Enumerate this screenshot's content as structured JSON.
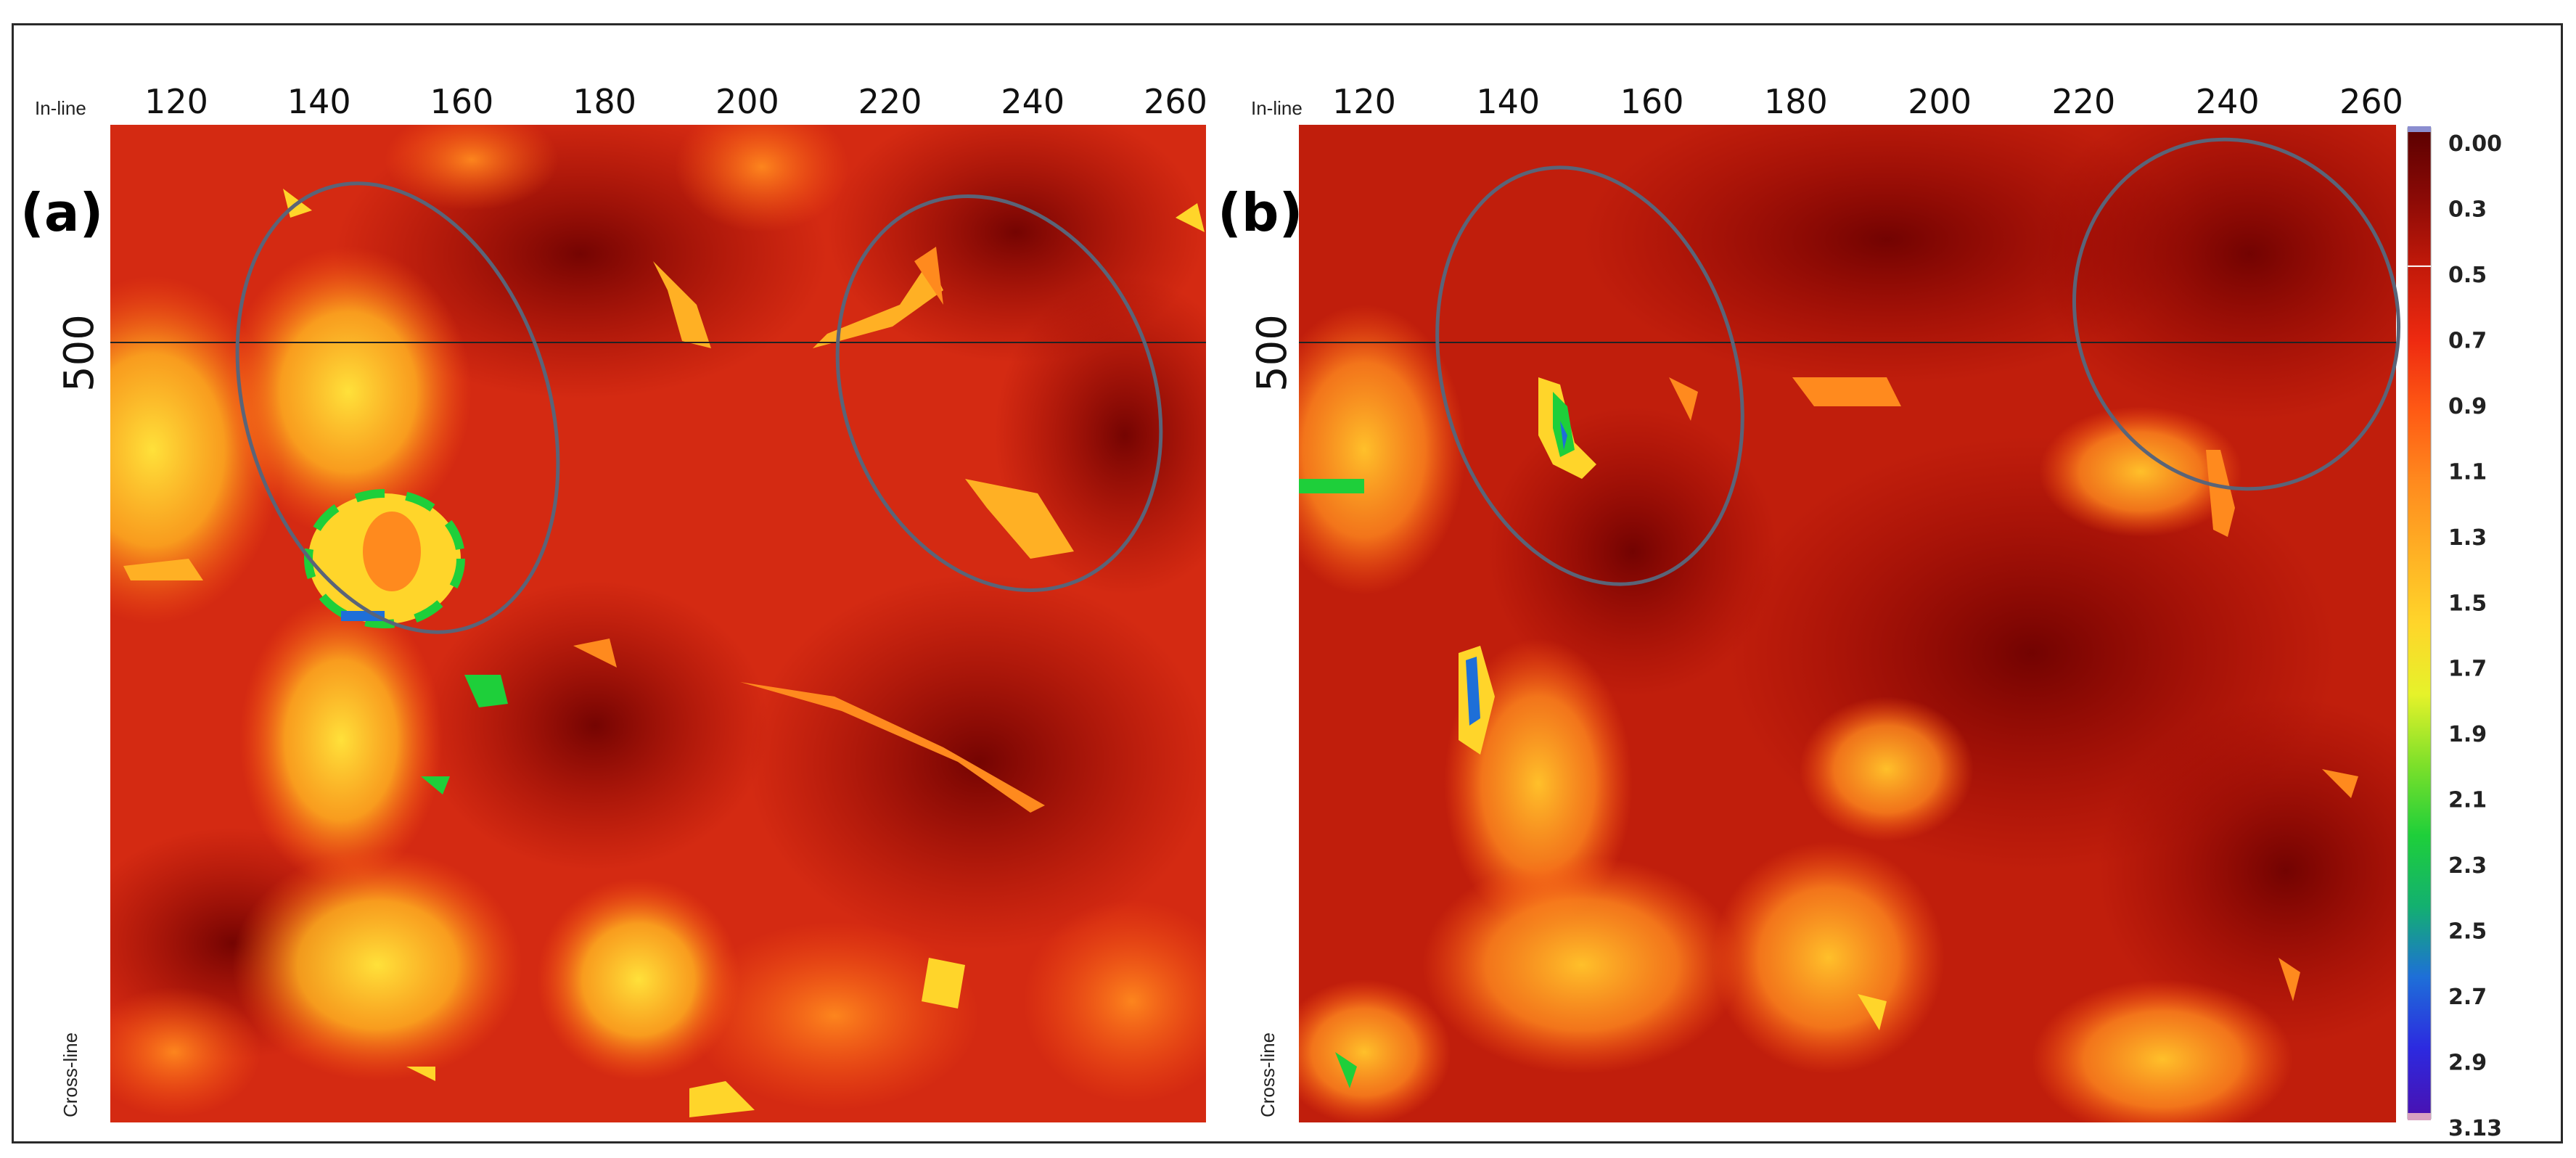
{
  "panels": [
    {
      "id": "a",
      "letter": "(a)",
      "top_axis_label": "In-line",
      "side_axis_label": "Cross-line",
      "xticks": [
        "120",
        "140",
        "160",
        "180",
        "200",
        "220",
        "240",
        "260"
      ],
      "xtick_values": [
        120,
        140,
        160,
        180,
        200,
        220,
        240,
        260
      ],
      "y_marker": "500",
      "ellipses": [
        "left-fault-zone",
        "right-fault-zone"
      ]
    },
    {
      "id": "b",
      "letter": "(b)",
      "top_axis_label": "In-line",
      "side_axis_label": "Cross-line",
      "xticks": [
        "120",
        "140",
        "160",
        "180",
        "200",
        "220",
        "240",
        "260"
      ],
      "xtick_values": [
        120,
        140,
        160,
        180,
        200,
        220,
        240,
        260
      ],
      "y_marker": "500",
      "ellipses": [
        "left-fault-zone",
        "right-fault-zone"
      ]
    }
  ],
  "colorbar": {
    "labels": [
      "0.00",
      "0.3",
      "0.5",
      "0.7",
      "0.9",
      "1.1",
      "1.3",
      "1.5",
      "1.7",
      "1.9",
      "2.1",
      "2.3",
      "2.5",
      "2.7",
      "2.9",
      "3.13"
    ],
    "min": 0.0,
    "max": 3.13,
    "stops": [
      "#5a0000",
      "#8b0a06",
      "#c41a0a",
      "#ee2a10",
      "#ff5a14",
      "#ff8a1e",
      "#ffb024",
      "#ffd52a",
      "#e6f22a",
      "#7de02a",
      "#1ecf3a",
      "#13b070",
      "#1e6fd8",
      "#2c2ae0",
      "#4a10b0"
    ]
  },
  "colors": {
    "frame": "#2a2a2a",
    "ellipse": "#5a6478",
    "base_map": "#d42a12"
  }
}
